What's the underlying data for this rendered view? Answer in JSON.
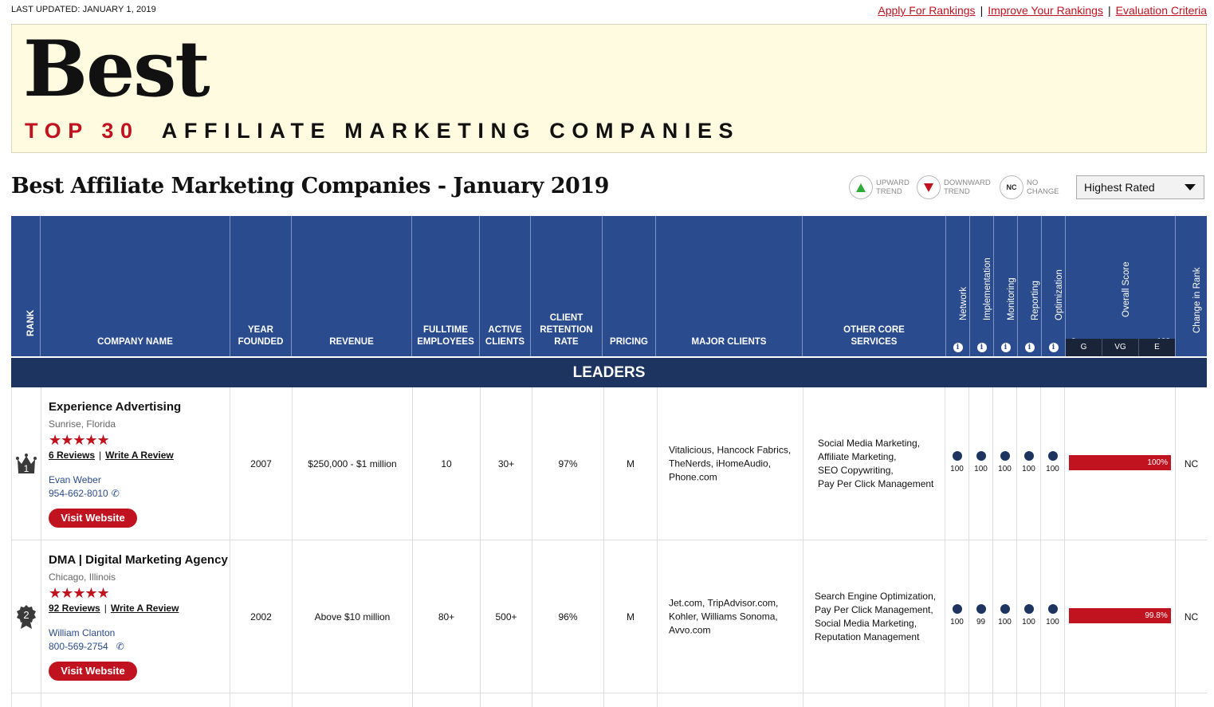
{
  "top": {
    "last_updated": "LAST UPDATED: JANUARY 1, 2019",
    "links": [
      "Apply For Rankings",
      "Improve Your Rankings",
      "Evaluation Criteria"
    ],
    "sep": "|"
  },
  "hero": {
    "best": "Best",
    "sub_red": "TOP 30",
    "sub_black": "AFFILIATE MARKETING COMPANIES"
  },
  "page_title": "Best Affiliate Marketing Companies - January 2019",
  "legend": {
    "up": {
      "l1": "UPWARD",
      "l2": "TREND"
    },
    "down": {
      "l1": "DOWNWARD",
      "l2": "TREND"
    },
    "nc": {
      "badge": "NC",
      "l1": "NO",
      "l2": "CHANGE"
    }
  },
  "sort": {
    "selected": "Highest Rated"
  },
  "columns": {
    "rank": "RANK",
    "company": "COMPANY NAME",
    "year_l1": "YEAR",
    "year_l2": "FOUNDED",
    "revenue": "REVENUE",
    "emp_l1": "FULLTIME",
    "emp_l2": "EMPLOYEES",
    "act_l1": "ACTIVE",
    "act_l2": "CLIENTS",
    "ret_l1": "CLIENT",
    "ret_l2": "RETENTION",
    "ret_l3": "RATE",
    "pricing": "PRICING",
    "major": "MAJOR CLIENTS",
    "oth_l1": "OTHER CORE",
    "oth_l2": "SERVICES",
    "network": "Network",
    "implementation": "Implementation",
    "monitoring": "Monitoring",
    "reporting": "Reporting",
    "optimization": "Optimization",
    "overall": "Overall Score",
    "score_min": "0",
    "score_max": "100",
    "grades": [
      "G",
      "VG",
      "E"
    ],
    "change": "Change in Rank",
    "info": "i"
  },
  "section": "LEADERS",
  "rows": [
    {
      "rank": "1",
      "name": "Experience Advertising",
      "location": "Sunrise, Florida",
      "stars": "★★★★★",
      "reviews": "6 Reviews",
      "write": "Write A Review",
      "contact_name": "Evan Weber",
      "phone": "954-662-8010",
      "visit": "Visit Website",
      "year": "2007",
      "revenue": "$250,000 - $1 million",
      "employees": "10",
      "clients": "30+",
      "retention": "97%",
      "pricing": "M",
      "major": [
        "Vitalicious, Hancock Fabrics,",
        "TheNerds, iHomeAudio,",
        "Phone.com"
      ],
      "services": [
        "Social Media Marketing,",
        "Affiliate Marketing,",
        "SEO Copywriting,",
        "Pay Per Click Management"
      ],
      "scores": [
        "100",
        "100",
        "100",
        "100",
        "100"
      ],
      "overall": "100%",
      "overall_value": 100,
      "change": "NC"
    },
    {
      "rank": "2",
      "name": "DMA | Digital Marketing Agency",
      "location": "Chicago, Illinois",
      "stars": "★★★★★",
      "reviews": "92 Reviews",
      "write": "Write A Review",
      "contact_name": "William Clanton",
      "phone": "800-569-2754",
      "visit": "Visit Website",
      "year": "2002",
      "revenue": "Above $10 million",
      "employees": "80+",
      "clients": "500+",
      "retention": "96%",
      "pricing": "M",
      "major": [
        "Jet.com, TripAdvisor.com,",
        "Kohler, Williams Sonoma,",
        "Avvo.com"
      ],
      "services": [
        "Search Engine Optimization,",
        "Pay Per Click Management,",
        "Social Media Marketing,",
        "Reputation Management"
      ],
      "scores": [
        "100",
        "99",
        "100",
        "100",
        "100"
      ],
      "overall": "99.8%",
      "overall_value": 99.8,
      "change": "NC"
    }
  ],
  "colors": {
    "accent_red": "#c1121f",
    "header_blue": "#2a4b8d",
    "section_navy": "#1d3461"
  }
}
